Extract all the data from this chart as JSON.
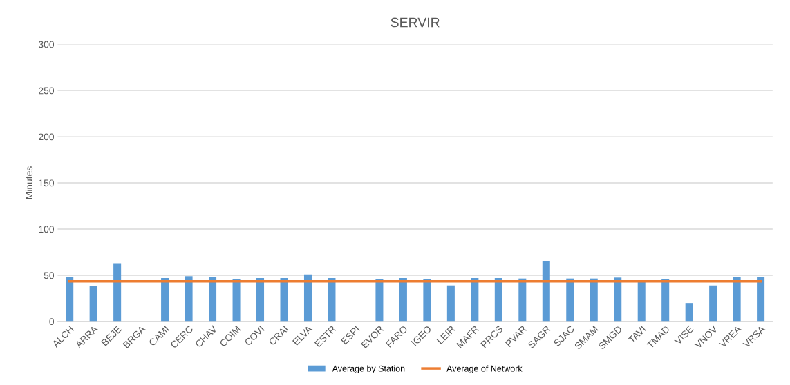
{
  "chart_data": {
    "type": "bar",
    "title": "SERVIR",
    "ylabel": "Minutes",
    "categories": [
      "ALCH",
      "ARRA",
      "BEJE",
      "BRGA",
      "CAMI",
      "CERC",
      "CHAV",
      "COIM",
      "COVI",
      "CRAI",
      "ELVA",
      "ESTR",
      "ESPI",
      "EVOR",
      "FARO",
      "IGEO",
      "LEIR",
      "MAFR",
      "PRCS",
      "PVAR",
      "SAGR",
      "SJAC",
      "SMAM",
      "SMGD",
      "TAVI",
      "TMAD",
      "VISE",
      "VNOV",
      "VREA",
      "VRSA"
    ],
    "series": [
      {
        "name": "Average by Station",
        "color": "#5b9bd5",
        "values": [
          48.5,
          38,
          63,
          null,
          47,
          49,
          48.5,
          45.5,
          47,
          47,
          51,
          47,
          null,
          46,
          47,
          45.5,
          39,
          47,
          47,
          46.5,
          65.5,
          46.5,
          46.5,
          47.5,
          44,
          46,
          20,
          39,
          48,
          48
        ]
      },
      {
        "name": "Average of Network",
        "type": "line",
        "color": "#ed7d31",
        "values": [
          43.5,
          43.5,
          43.5,
          43.5,
          43.5,
          43.5,
          43.5,
          43.5,
          43.5,
          43.5,
          43.5,
          43.5,
          43.5,
          43.5,
          43.5,
          43.5,
          43.5,
          43.5,
          43.5,
          43.5,
          43.5,
          43.5,
          43.5,
          43.5,
          43.5,
          43.5,
          43.5,
          43.5,
          43.5,
          43.5
        ]
      }
    ],
    "ylim": [
      0,
      300
    ],
    "yticks": [
      0,
      50,
      100,
      150,
      200,
      250,
      300
    ],
    "grid": "y",
    "legend": "bottom",
    "marker": "none"
  }
}
